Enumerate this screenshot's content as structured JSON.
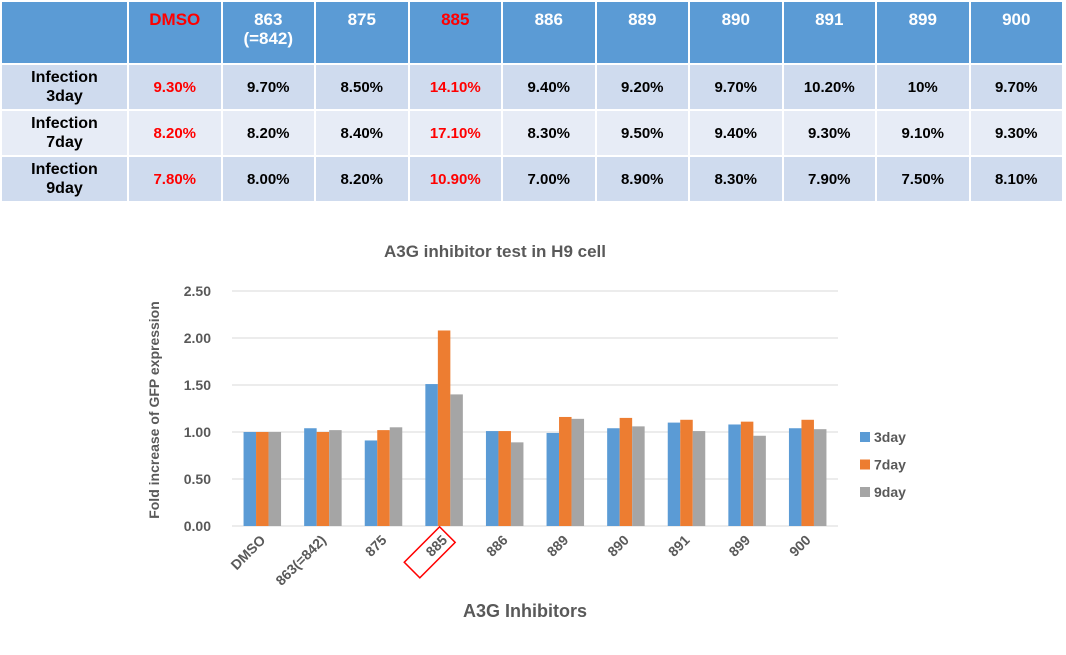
{
  "table": {
    "corner": "",
    "columns": [
      "DMSO",
      "863\n(=842)",
      "875",
      "885",
      "886",
      "889",
      "890",
      "891",
      "899",
      "900"
    ],
    "highlight_columns": [
      0,
      3
    ],
    "rows": [
      {
        "label": "Infection\n3day",
        "values": [
          "9.30%",
          "9.70%",
          "8.50%",
          "14.10%",
          "9.40%",
          "9.20%",
          "9.70%",
          "10.20%",
          "10%",
          "9.70%"
        ]
      },
      {
        "label": "Infection\n7day",
        "values": [
          "8.20%",
          "8.20%",
          "8.40%",
          "17.10%",
          "8.30%",
          "9.50%",
          "9.40%",
          "9.30%",
          "9.10%",
          "9.30%"
        ]
      },
      {
        "label": "Infection\n9day",
        "values": [
          "7.80%",
          "8.00%",
          "8.20%",
          "10.90%",
          "7.00%",
          "8.90%",
          "8.30%",
          "7.90%",
          "7.50%",
          "8.10%"
        ]
      }
    ],
    "colors": {
      "header_bg": "#5b9bd5",
      "highlight_text": "#ff0000"
    }
  },
  "chart_data": {
    "type": "bar",
    "title": "A3G inhibitor test in H9 cell",
    "xlabel": "A3G Inhibitors",
    "ylabel": "Fold increase of GFP expression",
    "categories": [
      "DMSO",
      "863(=842)",
      "875",
      "885",
      "886",
      "889",
      "890",
      "891",
      "899",
      "900"
    ],
    "highlighted_category": "885",
    "ylim": [
      0,
      2.5
    ],
    "yticks": [
      "0.00",
      "0.50",
      "1.00",
      "1.50",
      "2.00",
      "2.50"
    ],
    "grid": true,
    "legend_position": "right",
    "series": [
      {
        "name": "3day",
        "color": "#5b9bd5",
        "values": [
          1.0,
          1.04,
          0.91,
          1.51,
          1.01,
          0.99,
          1.04,
          1.1,
          1.08,
          1.04
        ]
      },
      {
        "name": "7day",
        "color": "#ed7d31",
        "values": [
          1.0,
          1.0,
          1.02,
          2.08,
          1.01,
          1.16,
          1.15,
          1.13,
          1.11,
          1.13
        ]
      },
      {
        "name": "9day",
        "color": "#a5a5a5",
        "values": [
          1.0,
          1.02,
          1.05,
          1.4,
          0.89,
          1.14,
          1.06,
          1.01,
          0.96,
          1.03
        ]
      }
    ]
  }
}
